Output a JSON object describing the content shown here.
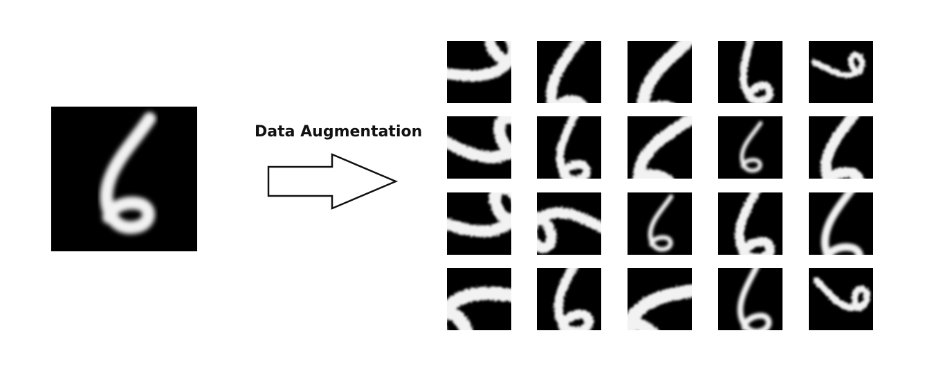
{
  "figure": {
    "caption": "Data Augmentation",
    "colors": {
      "background": "#ffffff",
      "tile": "#000000",
      "digit": "#f2f2f2",
      "arrow_stroke": "#111111",
      "arrow_fill": "#ffffff"
    },
    "source_digit": {
      "glyph": "6",
      "rotation_deg": 0
    },
    "augmented": {
      "rows": 4,
      "cols": 5,
      "samples": [
        {
          "rot": -120,
          "sx": 1.7,
          "sy": 1.7,
          "dx": -6,
          "dy": -10,
          "jitter": 1
        },
        {
          "rot": 0,
          "sx": 1.6,
          "sy": 1.7,
          "dx": -4,
          "dy": 8,
          "jitter": 1
        },
        {
          "rot": 10,
          "sx": 1.9,
          "sy": 1.9,
          "dx": 8,
          "dy": 12,
          "jitter": 1
        },
        {
          "rot": -20,
          "sx": 1.1,
          "sy": 1.2,
          "dx": 0,
          "dy": 0,
          "jitter": 1
        },
        {
          "rot": -100,
          "sx": 0.9,
          "sy": 0.9,
          "dx": -2,
          "dy": -6,
          "jitter": 1
        },
        {
          "rot": -100,
          "sx": 1.8,
          "sy": 1.8,
          "dx": -4,
          "dy": -6,
          "jitter": 1
        },
        {
          "rot": -10,
          "sx": 1.2,
          "sy": 1.3,
          "dx": 0,
          "dy": 0,
          "jitter": 1
        },
        {
          "rot": 20,
          "sx": 1.8,
          "sy": 1.8,
          "dx": 6,
          "dy": 6,
          "jitter": 1
        },
        {
          "rot": 0,
          "sx": 0.9,
          "sy": 0.9,
          "dx": 0,
          "dy": 0,
          "jitter": 0
        },
        {
          "rot": 0,
          "sx": 1.6,
          "sy": 1.6,
          "dx": 0,
          "dy": 4,
          "jitter": 1
        },
        {
          "rot": -110,
          "sx": 1.8,
          "sy": 1.8,
          "dx": -6,
          "dy": -6,
          "jitter": 1
        },
        {
          "rot": 80,
          "sx": 1.6,
          "sy": 1.6,
          "dx": 4,
          "dy": 2,
          "jitter": 1
        },
        {
          "rot": 0,
          "sx": 1.0,
          "sy": 1.0,
          "dx": 0,
          "dy": 0,
          "jitter": 0
        },
        {
          "rot": -10,
          "sx": 1.4,
          "sy": 1.4,
          "dx": 0,
          "dy": 0,
          "jitter": 1
        },
        {
          "rot": 0,
          "sx": 1.7,
          "sy": 1.7,
          "dx": 0,
          "dy": 0,
          "jitter": 0
        },
        {
          "rot": 60,
          "sx": 2.0,
          "sy": 2.0,
          "dx": 8,
          "dy": 10,
          "jitter": 1
        },
        {
          "rot": -10,
          "sx": 1.4,
          "sy": 1.4,
          "dx": 0,
          "dy": -4,
          "jitter": 1
        },
        {
          "rot": 45,
          "sx": 2.0,
          "sy": 2.0,
          "dx": 10,
          "dy": 14,
          "jitter": 1
        },
        {
          "rot": -10,
          "sx": 1.3,
          "sy": 1.3,
          "dx": 0,
          "dy": 0,
          "jitter": 0
        },
        {
          "rot": -80,
          "sx": 1.0,
          "sy": 1.0,
          "dx": 0,
          "dy": -4,
          "jitter": 1
        }
      ]
    }
  }
}
